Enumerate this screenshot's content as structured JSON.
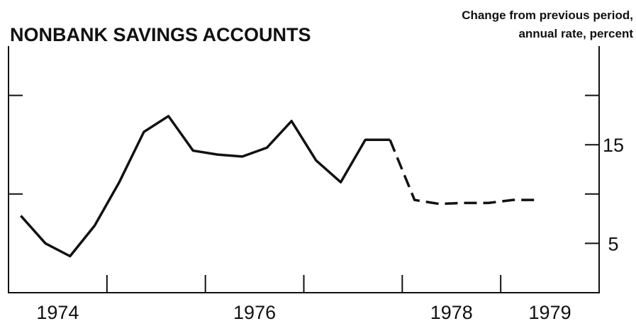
{
  "chart_data": {
    "type": "line",
    "title": "NONBANK SAVINGS ACCOUNTS",
    "subtitle": [
      "Change from previous period,",
      "annual rate, percent"
    ],
    "x": [
      1974.125,
      1974.375,
      1974.625,
      1974.875,
      1975.125,
      1975.375,
      1975.625,
      1975.875,
      1976.125,
      1976.375,
      1976.625,
      1976.875,
      1977.125,
      1977.375,
      1977.625,
      1977.875,
      1978.125,
      1978.375,
      1978.625,
      1978.875,
      1979.125,
      1979.375
    ],
    "series": [
      {
        "color": "#111111",
        "style": "solid",
        "values": [
          7.8,
          5.0,
          3.7,
          6.8,
          11.2,
          16.3,
          17.9,
          14.4,
          14.0,
          13.8,
          14.7,
          17.4,
          13.4,
          11.2,
          15.5,
          15.5,
          null,
          null,
          null,
          null,
          null,
          null
        ]
      },
      {
        "color": "#111111",
        "style": "dashed",
        "values": [
          null,
          null,
          null,
          null,
          null,
          null,
          null,
          null,
          null,
          null,
          null,
          null,
          null,
          null,
          null,
          15.5,
          9.4,
          9.0,
          9.1,
          9.1,
          9.4,
          9.4
        ]
      }
    ],
    "xlim": [
      1974,
      1980
    ],
    "xticks": [
      1975,
      1976,
      1977,
      1978,
      1979
    ],
    "xlabels": [
      {
        "value": 1974.5,
        "label": "1974"
      },
      {
        "value": 1976.5,
        "label": "1976"
      },
      {
        "value": 1978.5,
        "label": "1978"
      },
      {
        "value": 1979.5,
        "label": "1979"
      }
    ],
    "ylim": [
      0,
      25
    ],
    "yticks": [
      5,
      15
    ],
    "minor_yticks": [
      10,
      20
    ]
  }
}
